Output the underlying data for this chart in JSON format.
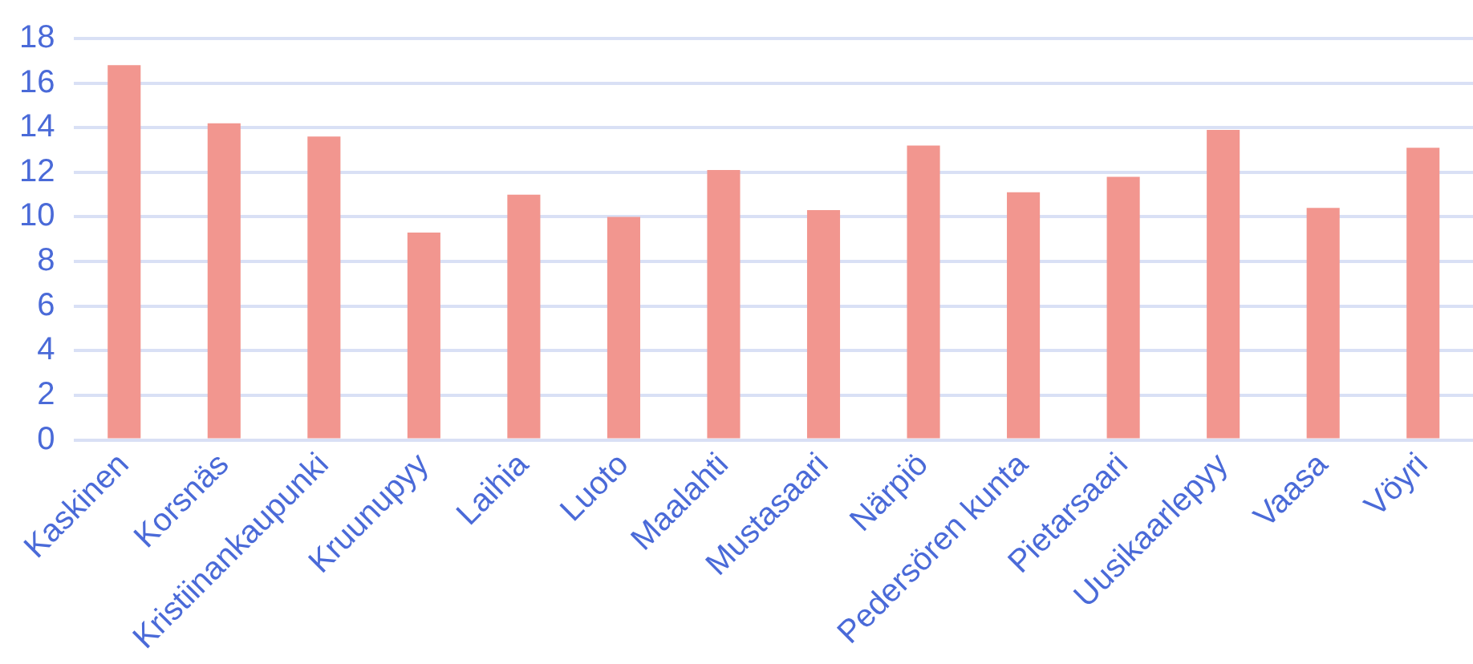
{
  "chart_data": {
    "type": "bar",
    "categories": [
      "Kaskinen",
      "Korsnäs",
      "Kristiinankaupunki",
      "Kruunupyy",
      "Laihia",
      "Luoto",
      "Maalahti",
      "Mustasaari",
      "Närpiö",
      "Pedersören kunta",
      "Pietarsaari",
      "Uusikaarlepyy",
      "Vaasa",
      "Vöyri"
    ],
    "values": [
      16.8,
      14.2,
      13.6,
      9.3,
      11.0,
      10.0,
      12.1,
      10.3,
      13.2,
      11.1,
      11.8,
      13.9,
      10.4,
      13.1
    ],
    "color": "#f2968f",
    "ylim": [
      0,
      18
    ],
    "yticks": [
      0,
      2,
      4,
      6,
      8,
      10,
      12,
      14,
      16,
      18
    ],
    "grid": "y"
  }
}
